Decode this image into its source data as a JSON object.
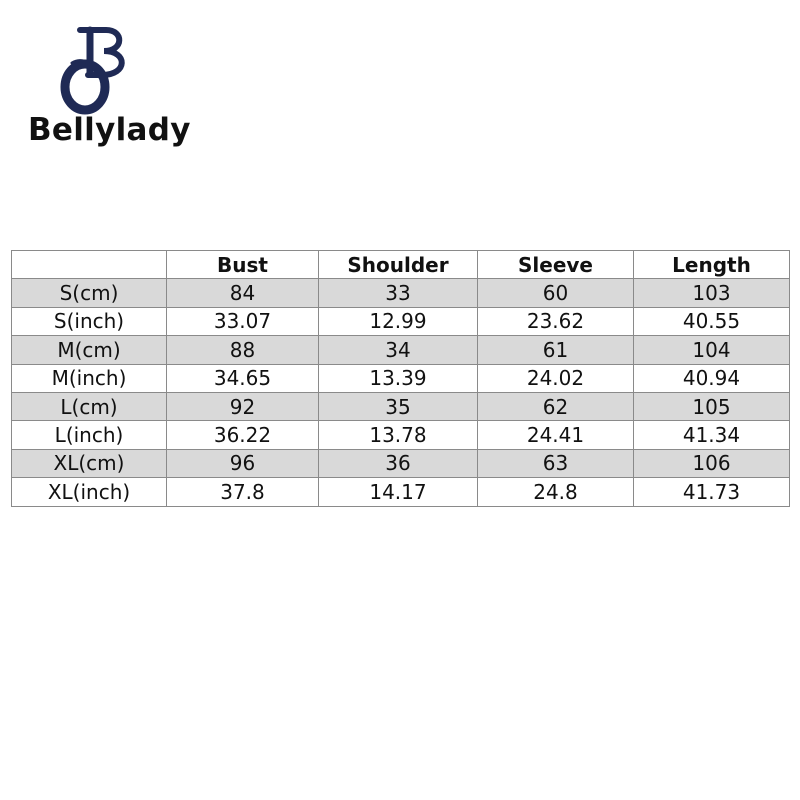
{
  "brand": "Bellylady",
  "table": {
    "header": [
      "Bust",
      "Shoulder",
      "Sleeve",
      "Length"
    ],
    "rows": [
      [
        "S(cm)",
        "84",
        "33",
        "60",
        "103"
      ],
      [
        "S(inch)",
        "33.07",
        "12.99",
        "23.62",
        "40.55"
      ],
      [
        "M(cm)",
        "88",
        "34",
        "61",
        "104"
      ],
      [
        "M(inch)",
        "34.65",
        "13.39",
        "24.02",
        "40.94"
      ],
      [
        "L(cm)",
        "92",
        "35",
        "62",
        "105"
      ],
      [
        "L(inch)",
        "36.22",
        "13.78",
        "24.41",
        "41.34"
      ],
      [
        "XL(cm)",
        "96",
        "36",
        "63",
        "106"
      ],
      [
        "XL(inch)",
        "37.8",
        "14.17",
        "24.8",
        "41.73"
      ]
    ]
  }
}
